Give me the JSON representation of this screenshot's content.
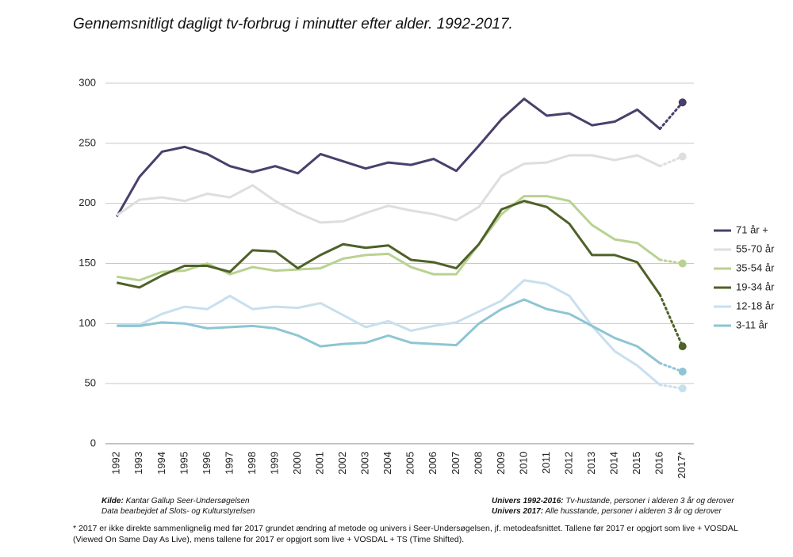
{
  "chart_data": {
    "type": "line",
    "title": "Gennemsnitligt dagligt tv-forbrug i minutter efter alder. 1992-2017.",
    "categories": [
      "1992",
      "1993",
      "1994",
      "1995",
      "1996",
      "1997",
      "1998",
      "1999",
      "2000",
      "2001",
      "2002",
      "2003",
      "2004",
      "2005",
      "2006",
      "2007",
      "2008",
      "2009",
      "2010",
      "2011",
      "2012",
      "2013",
      "2014",
      "2015",
      "2016",
      "2017*"
    ],
    "ylim": [
      0,
      300
    ],
    "yticks": [
      0,
      50,
      100,
      150,
      200,
      250,
      300
    ],
    "grid": true,
    "legend": "right",
    "series": [
      {
        "name": "71 år +",
        "color": "#4a3f6b",
        "values": [
          189,
          222,
          243,
          247,
          241,
          231,
          226,
          231,
          225,
          241,
          235,
          229,
          234,
          232,
          237,
          227,
          248,
          270,
          287,
          273,
          275,
          265,
          268,
          278,
          262,
          284
        ]
      },
      {
        "name": "55-70 år",
        "color": "#dcdfdd",
        "values": [
          190,
          203,
          205,
          202,
          208,
          205,
          215,
          202,
          192,
          184,
          185,
          192,
          198,
          194,
          191,
          186,
          197,
          223,
          233,
          234,
          240,
          240,
          236,
          240,
          231,
          239
        ]
      },
      {
        "name": "35-54 år",
        "color": "#b9d291",
        "values": [
          139,
          136,
          143,
          144,
          150,
          141,
          147,
          144,
          145,
          146,
          154,
          157,
          158,
          147,
          141,
          141,
          166,
          191,
          206,
          206,
          202,
          182,
          170,
          167,
          153,
          150
        ]
      },
      {
        "name": "19-34 år",
        "color": "#4e6128",
        "values": [
          134,
          130,
          140,
          148,
          148,
          143,
          161,
          160,
          146,
          157,
          166,
          163,
          165,
          153,
          151,
          146,
          166,
          195,
          202,
          197,
          183,
          157,
          157,
          151,
          124,
          81
        ]
      },
      {
        "name": "12-18 år",
        "color": "#c8dfee",
        "values": [
          99,
          99,
          108,
          114,
          112,
          123,
          112,
          114,
          113,
          117,
          107,
          97,
          102,
          94,
          98,
          101,
          110,
          119,
          136,
          133,
          123,
          98,
          77,
          65,
          49,
          46
        ]
      },
      {
        "name": "3-11 år",
        "color": "#8ec5d4",
        "values": [
          98,
          98,
          101,
          100,
          96,
          97,
          98,
          96,
          90,
          81,
          83,
          84,
          90,
          84,
          83,
          82,
          100,
          112,
          120,
          112,
          108,
          98,
          88,
          81,
          67,
          60
        ]
      }
    ]
  },
  "notes": {
    "source_label": "Kilde:",
    "source": "Kantar Gallup Seer-Undersøgelsen",
    "source_line2": "Data bearbejdet af Slots- og Kulturstyrelsen",
    "univers1_label": "Univers 1992-2016:",
    "univers1": "Tv-hustande, personer i alderen 3 år og derover",
    "univers2_label": "Univers 2017:",
    "univers2": "Alle husstande, personer i alderen 3 år og derover",
    "footnote": "* 2017 er ikke direkte sammenlignelig med før 2017 grundet ændring af metode og univers i Seer-Undersøgelsen, jf. metodeafsnittet. Tallene før 2017 er opgjort som live + VOSDAL (Viewed On Same Day As Live), mens tallene for 2017 er opgjort som live + VOSDAL + TS (Time Shifted)."
  }
}
